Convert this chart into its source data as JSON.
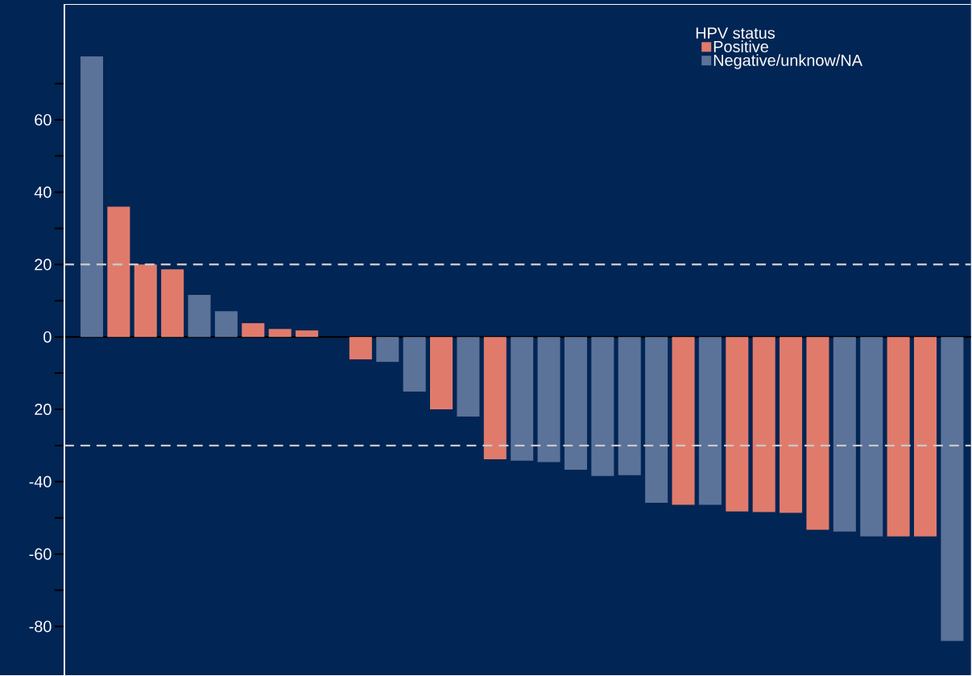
{
  "chart_data": {
    "type": "bar",
    "legend_title": "HPV status",
    "categories": [
      null,
      null,
      null,
      null,
      null,
      null,
      null,
      null,
      null,
      null,
      null,
      null,
      null,
      null,
      null,
      null,
      null,
      null,
      null,
      null,
      null,
      null,
      null,
      null,
      null,
      null,
      null,
      null,
      null,
      null,
      null,
      null,
      null
    ],
    "series": [
      {
        "name": "Positive",
        "color": "#e07b6c",
        "values": [
          null,
          36,
          20,
          18.7,
          null,
          null,
          3.8,
          2.2,
          1.8,
          null,
          -6.2,
          null,
          null,
          -20,
          null,
          -33.8,
          null,
          null,
          null,
          null,
          null,
          null,
          -46.4,
          null,
          -48.2,
          -48.4,
          -48.6,
          -53.3,
          null,
          null,
          -55.1,
          -55.1,
          null
        ]
      },
      {
        "name": "Negative/unknow/NA",
        "color": "#5b7299",
        "values": [
          77.5,
          null,
          null,
          null,
          11.6,
          7.1,
          null,
          null,
          null,
          null,
          null,
          -6.9,
          -15.1,
          null,
          -22,
          null,
          -34.2,
          -34.6,
          -36.7,
          -38.4,
          -38.2,
          -45.8,
          null,
          -46.4,
          null,
          null,
          null,
          null,
          -53.8,
          -55.1,
          null,
          null,
          -84
        ]
      }
    ],
    "ylim": [
      -93.5,
      92
    ],
    "yticks": [
      {
        "value": 70,
        "label": null
      },
      60,
      {
        "value": 50,
        "label": null
      },
      40,
      {
        "value": 30,
        "label": null
      },
      20,
      {
        "value": 10,
        "label": null
      },
      0,
      {
        "value": -10,
        "label": null
      },
      {
        "value": -20,
        "label": "20"
      },
      {
        "value": -30,
        "label": null
      },
      -40,
      {
        "value": -50,
        "label": null
      },
      -60,
      {
        "value": -70,
        "label": null
      },
      -80
    ],
    "ref_lines": [
      {
        "axis": "y",
        "value": 20,
        "color": "#c8c8c8",
        "line_style": "dashed"
      },
      {
        "axis": "y",
        "value": -30,
        "color": "#c8c8c8",
        "line_style": "dashed"
      }
    ],
    "legend": "top right",
    "grid": false
  }
}
